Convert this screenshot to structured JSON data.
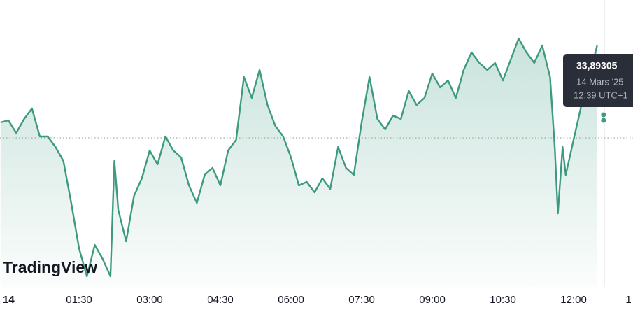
{
  "chart_data": {
    "type": "line",
    "x": [
      -10,
      0,
      10,
      20,
      30,
      40,
      50,
      60,
      70,
      80,
      90,
      100,
      110,
      120,
      130,
      135,
      140,
      150,
      160,
      170,
      180,
      190,
      200,
      210,
      220,
      230,
      240,
      250,
      260,
      270,
      280,
      290,
      300,
      310,
      320,
      330,
      340,
      350,
      360,
      370,
      380,
      390,
      400,
      410,
      420,
      430,
      440,
      450,
      460,
      470,
      480,
      490,
      500,
      510,
      520,
      530,
      540,
      550,
      560,
      570,
      580,
      590,
      600,
      610,
      620,
      630,
      640,
      650,
      660,
      670,
      680,
      690,
      696,
      700,
      706,
      710,
      720,
      730,
      740,
      750
    ],
    "series": [
      {
        "color": "#3d9a80",
        "values": [
          33.838,
          33.8395,
          33.8305,
          33.8405,
          33.848,
          33.828,
          33.828,
          33.8205,
          33.8105,
          33.7805,
          33.748,
          33.728,
          33.7505,
          33.7405,
          33.728,
          33.8105,
          33.7755,
          33.753,
          33.7855,
          33.798,
          33.818,
          33.808,
          33.828,
          33.818,
          33.813,
          33.793,
          33.7805,
          33.8005,
          33.8055,
          33.793,
          33.818,
          33.8255,
          33.8705,
          33.8555,
          33.8755,
          33.8505,
          33.8355,
          33.828,
          33.813,
          33.793,
          33.7955,
          33.788,
          33.798,
          33.7905,
          33.8205,
          33.8055,
          33.8005,
          33.838,
          33.8705,
          33.8405,
          33.833,
          33.843,
          33.8405,
          33.8605,
          33.8505,
          33.8555,
          33.873,
          33.863,
          33.868,
          33.8555,
          33.8755,
          33.888,
          33.8805,
          33.8755,
          33.8805,
          33.868,
          33.883,
          33.898,
          33.888,
          33.8805,
          33.893,
          33.8705,
          33.8205,
          33.773,
          33.8205,
          33.8005,
          33.8255,
          33.8505,
          33.8705,
          33.893
        ]
      }
    ],
    "xlim": [
      -10.7,
      795.7
    ],
    "ylim": [
      33.7205,
      33.9255
    ],
    "xticks": [
      {
        "value": 0,
        "label": "14"
      },
      {
        "value": 90,
        "label": "01:30"
      },
      {
        "value": 180,
        "label": "03:00"
      },
      {
        "value": 270,
        "label": "04:30"
      },
      {
        "value": 360,
        "label": "06:00"
      },
      {
        "value": 450,
        "label": "07:30"
      },
      {
        "value": 540,
        "label": "09:00"
      },
      {
        "value": 630,
        "label": "10:30"
      },
      {
        "value": 720,
        "label": "12:00"
      },
      {
        "value": 790,
        "label": "1"
      }
    ],
    "reference_line": 33.827,
    "crosshair_x": 759,
    "tooltip": {
      "price": "33,89305",
      "date": "14 Mars '25",
      "time": "12:39 UTC+1"
    },
    "watermark": "TradingView"
  }
}
